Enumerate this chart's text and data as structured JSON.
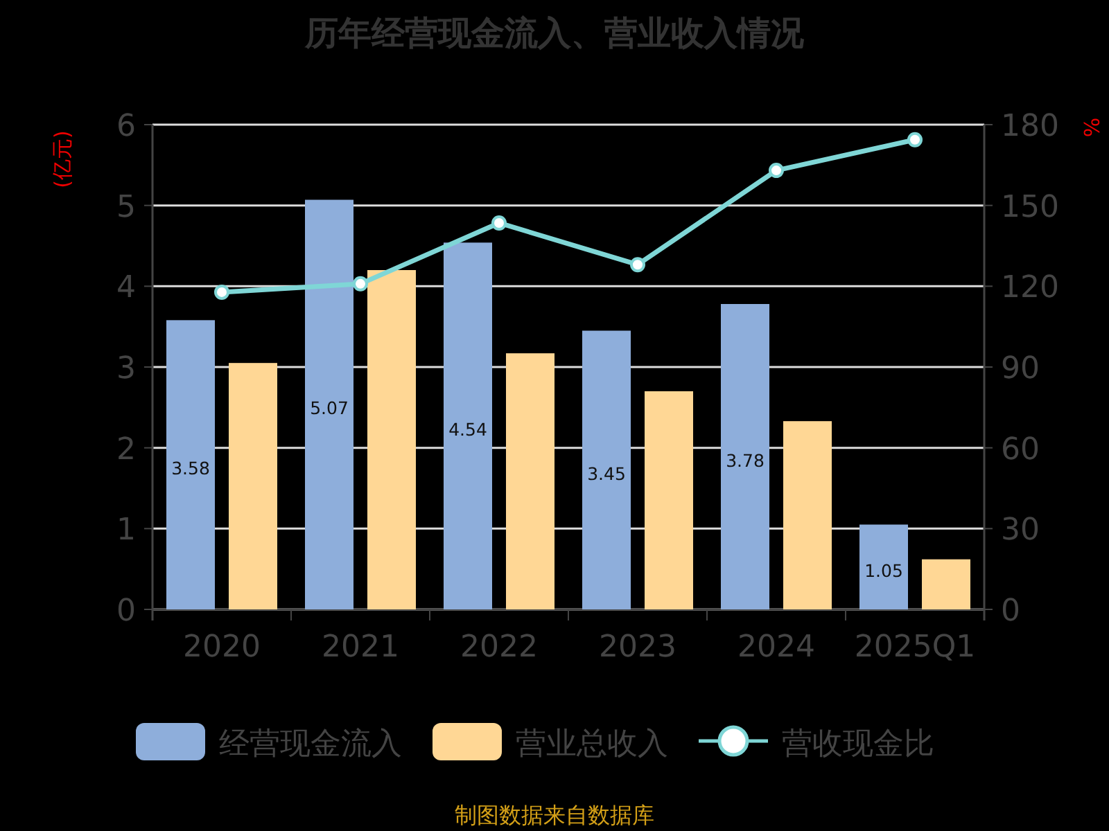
{
  "chart_data": {
    "type": "bar",
    "title": "历年经营现金流入、营业收入情况",
    "categories": [
      "2020",
      "2021",
      "2022",
      "2023",
      "2024",
      "2025Q1"
    ],
    "ylabel": "(亿元)",
    "y2label": "%",
    "ylim": [
      0,
      6
    ],
    "yticks": [
      0,
      1,
      2,
      3,
      4,
      5,
      6
    ],
    "y2lim": [
      0,
      180
    ],
    "y2ticks": [
      0,
      30,
      60,
      90,
      120,
      150,
      180
    ],
    "grid": "y",
    "legend": "bottom",
    "series": [
      {
        "name": "经营现金流入",
        "color": "#8eaedb",
        "values": [
          3.58,
          5.07,
          4.54,
          3.45,
          3.78,
          1.05
        ],
        "value_labels": [
          "3.58",
          "5.07",
          "4.54",
          "3.45",
          "3.78",
          "1.05"
        ]
      },
      {
        "name": "营业总收入",
        "color": "#ffd795",
        "values": [
          3.05,
          4.2,
          3.17,
          2.7,
          2.33,
          0.62
        ]
      },
      {
        "name": "营收现金比",
        "type": "line",
        "axis": "y2",
        "marker": "circle",
        "color": "#7fd6d6",
        "values": [
          117.8,
          120.9,
          143.5,
          128,
          163,
          174.4
        ]
      }
    ],
    "annotations": [
      "制图数据来自数据库"
    ]
  }
}
